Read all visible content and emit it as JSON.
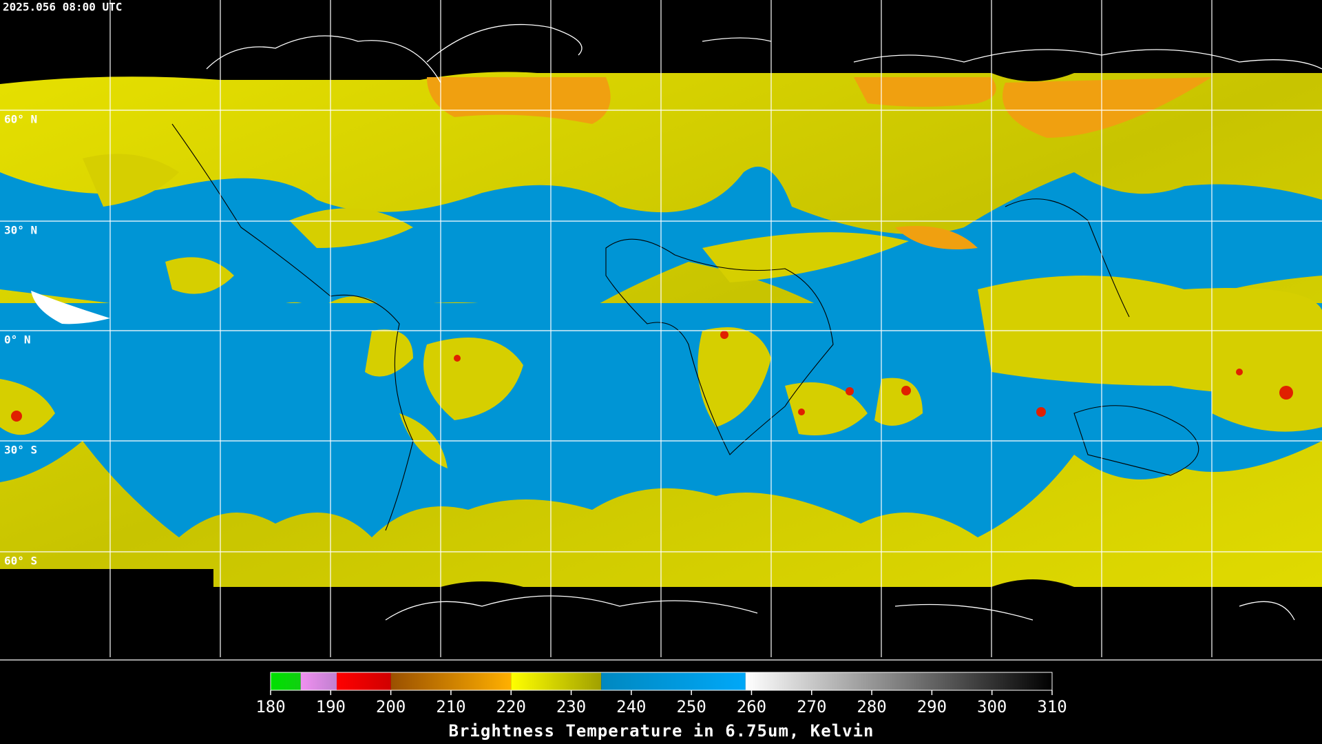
{
  "timestamp": "2025.056 08:00 UTC",
  "lat_labels": [
    "60° N",
    "30° N",
    "0° N",
    "30° S",
    "60° S"
  ],
  "colorbar": {
    "title": "Brightness Temperature in 6.75um, Kelvin",
    "range": [
      180,
      310
    ],
    "ticks": [
      180,
      190,
      200,
      210,
      220,
      230,
      240,
      250,
      260,
      270,
      280,
      290,
      300,
      310
    ],
    "segments": [
      {
        "from": 180,
        "to": 185,
        "colors": [
          "#00e000",
          "#10d010"
        ]
      },
      {
        "from": 185,
        "to": 191,
        "colors": [
          "#f090f0",
          "#c080d0"
        ]
      },
      {
        "from": 191,
        "to": 200,
        "colors": [
          "#ff0000",
          "#d00000"
        ]
      },
      {
        "from": 200,
        "to": 220,
        "colors": [
          "#9a5000",
          "#ffb000"
        ]
      },
      {
        "from": 220,
        "to": 235,
        "colors": [
          "#ffff00",
          "#a0a000"
        ]
      },
      {
        "from": 235,
        "to": 259,
        "colors": [
          "#0088c0",
          "#00a8f8"
        ]
      },
      {
        "from": 259,
        "to": 310,
        "colors": [
          "#ffffff",
          "#000000"
        ]
      }
    ]
  }
}
